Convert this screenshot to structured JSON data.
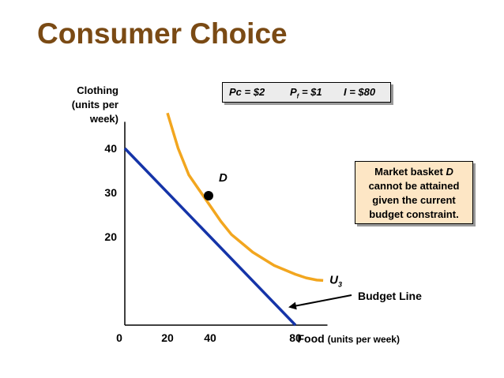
{
  "slide_title": "Consumer Choice",
  "price_box": {
    "pc": "Pc = $2",
    "pf_base": "P",
    "pf_sub": "f",
    "pf_rest": " = $1",
    "income": "I = $80"
  },
  "note": {
    "lines": [
      "Market basket D",
      "cannot be attained",
      "given the current",
      "budget constraint."
    ]
  },
  "colors": {
    "title": "#7a4a14",
    "budget_line": "#1534a8",
    "indifference_curve": "#f2a61f",
    "note_bg": "#fde6c5",
    "price_box_bg": "#ececec"
  },
  "chart_data": {
    "type": "line",
    "xlabel": "Food",
    "xlabel_unit": "(units per week)",
    "ylabel_lines": [
      "Clothing",
      "(units per",
      "week)"
    ],
    "x_ticks": [
      "0",
      "20",
      "40",
      "80"
    ],
    "x_tick_values": [
      0,
      20,
      40,
      80
    ],
    "y_ticks": [
      "40",
      "30",
      "20"
    ],
    "y_tick_values": [
      40,
      30,
      20
    ],
    "xlim": [
      0,
      95
    ],
    "ylim": [
      0,
      46
    ],
    "series": [
      {
        "key": "budget",
        "points": [
          [
            0,
            40
          ],
          [
            80,
            0
          ]
        ]
      },
      {
        "key": "u3",
        "name": "U",
        "name_sub": "3",
        "points": [
          [
            20,
            48
          ],
          [
            25,
            40
          ],
          [
            30,
            34
          ],
          [
            35,
            30.5
          ],
          [
            40,
            27
          ],
          [
            45,
            23.5
          ],
          [
            50,
            20.5
          ],
          [
            55,
            18.5
          ],
          [
            60,
            16.5
          ],
          [
            65,
            15
          ],
          [
            70,
            13.5
          ],
          [
            75,
            12.5
          ],
          [
            80,
            11.5
          ],
          [
            85,
            10.7
          ],
          [
            90,
            10.2
          ],
          [
            93,
            10.1
          ]
        ]
      }
    ],
    "point_d": {
      "label": "D",
      "x": 40,
      "y": 30
    },
    "arrow_label": "Budget Line"
  }
}
